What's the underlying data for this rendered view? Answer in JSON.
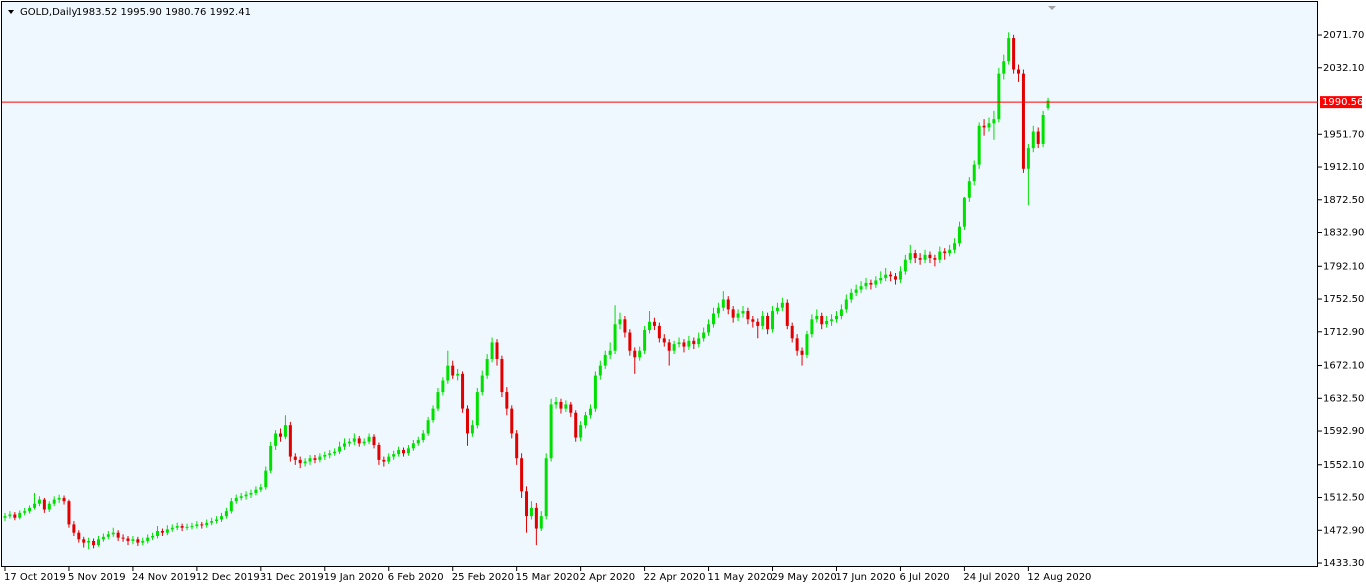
{
  "chart_data": {
    "type": "candlestick",
    "title": "GOLD,Daily",
    "subtitle": "1983.52 1995.90 1980.76 1992.41",
    "up_color": "#00e000",
    "down_color": "#e00000",
    "current_price": 1990.56,
    "current_price_color": "#ff0000",
    "grid": false,
    "ylim": [
      1428.5,
      2108.0
    ],
    "yticks": [
      {
        "value": 1433.3,
        "label": "1433.30"
      },
      {
        "value": 1472.9,
        "label": "1472.90"
      },
      {
        "value": 1512.5,
        "label": "1512.50"
      },
      {
        "value": 1552.1,
        "label": "1552.10"
      },
      {
        "value": 1592.9,
        "label": "1592.90"
      },
      {
        "value": 1632.5,
        "label": "1632.50"
      },
      {
        "value": 1672.1,
        "label": "1672.10"
      },
      {
        "value": 1712.9,
        "label": "1712.90"
      },
      {
        "value": 1752.5,
        "label": "1752.50"
      },
      {
        "value": 1792.1,
        "label": "1792.10"
      },
      {
        "value": 1832.9,
        "label": "1832.90"
      },
      {
        "value": 1872.5,
        "label": "1872.50"
      },
      {
        "value": 1912.1,
        "label": "1912.10"
      },
      {
        "value": 1951.7,
        "label": "1951.70"
      },
      {
        "value": 2032.1,
        "label": "2032.10"
      },
      {
        "value": 2071.7,
        "label": "2071.70"
      }
    ],
    "categories": [
      "17 Oct 2019",
      null,
      null,
      null,
      null,
      null,
      null,
      null,
      null,
      null,
      null,
      null,
      null,
      "5 Nov 2019",
      null,
      null,
      null,
      null,
      null,
      null,
      null,
      null,
      null,
      null,
      null,
      null,
      "24 Nov 2019",
      null,
      null,
      null,
      null,
      null,
      null,
      null,
      null,
      null,
      null,
      null,
      null,
      "12 Dec 2019",
      null,
      null,
      null,
      null,
      null,
      null,
      null,
      null,
      null,
      null,
      null,
      null,
      "31 Dec 2019",
      null,
      null,
      null,
      null,
      null,
      null,
      null,
      null,
      null,
      null,
      null,
      null,
      "19 Jan 2020",
      null,
      null,
      null,
      null,
      null,
      null,
      null,
      null,
      null,
      null,
      null,
      null,
      "6 Feb 2020",
      null,
      null,
      null,
      null,
      null,
      null,
      null,
      null,
      null,
      null,
      null,
      null,
      "25 Feb 2020",
      null,
      null,
      null,
      null,
      null,
      null,
      null,
      null,
      null,
      null,
      null,
      null,
      "15 Mar 2020",
      null,
      null,
      null,
      null,
      null,
      null,
      null,
      null,
      null,
      null,
      null,
      null,
      "2 Apr 2020",
      null,
      null,
      null,
      null,
      null,
      null,
      null,
      null,
      null,
      null,
      null,
      null,
      "22 Apr 2020",
      null,
      null,
      null,
      null,
      null,
      null,
      null,
      null,
      null,
      null,
      null,
      null,
      "11 May 2020",
      null,
      null,
      null,
      null,
      null,
      null,
      null,
      null,
      null,
      null,
      null,
      null,
      "29 May 2020",
      null,
      null,
      null,
      null,
      null,
      null,
      null,
      null,
      null,
      null,
      null,
      null,
      "17 Jun 2020",
      null,
      null,
      null,
      null,
      null,
      null,
      null,
      null,
      null,
      null,
      null,
      null,
      "6 Jul 2020",
      null,
      null,
      null,
      null,
      null,
      null,
      null,
      null,
      null,
      null,
      null,
      null,
      "24 Jul 2020",
      null,
      null,
      null,
      null,
      null,
      null,
      null,
      null,
      null,
      null,
      null,
      null,
      "12 Aug 2020",
      null,
      null,
      null,
      null
    ],
    "ohlc": [
      [
        1488,
        1494,
        1484,
        1490
      ],
      [
        1490,
        1496,
        1487,
        1492
      ],
      [
        1492,
        1495,
        1485,
        1488
      ],
      [
        1488,
        1497,
        1486,
        1494
      ],
      [
        1494,
        1500,
        1491,
        1496
      ],
      [
        1496,
        1503,
        1493,
        1500
      ],
      [
        1500,
        1518,
        1498,
        1505
      ],
      [
        1505,
        1514,
        1502,
        1510
      ],
      [
        1510,
        1512,
        1494,
        1498
      ],
      [
        1498,
        1508,
        1495,
        1505
      ],
      [
        1505,
        1514,
        1502,
        1510
      ],
      [
        1510,
        1516,
        1506,
        1512
      ],
      [
        1512,
        1515,
        1504,
        1508
      ],
      [
        1508,
        1510,
        1476,
        1480
      ],
      [
        1480,
        1484,
        1466,
        1470
      ],
      [
        1470,
        1473,
        1458,
        1462
      ],
      [
        1462,
        1465,
        1452,
        1458
      ],
      [
        1458,
        1464,
        1450,
        1460
      ],
      [
        1460,
        1463,
        1451,
        1455
      ],
      [
        1455,
        1466,
        1453,
        1462
      ],
      [
        1462,
        1469,
        1459,
        1465
      ],
      [
        1465,
        1472,
        1462,
        1468
      ],
      [
        1468,
        1476,
        1465,
        1470
      ],
      [
        1470,
        1473,
        1460,
        1464
      ],
      [
        1464,
        1468,
        1459,
        1463
      ],
      [
        1463,
        1466,
        1455,
        1460
      ],
      [
        1460,
        1466,
        1456,
        1462
      ],
      [
        1462,
        1465,
        1454,
        1458
      ],
      [
        1458,
        1464,
        1455,
        1460
      ],
      [
        1460,
        1468,
        1457,
        1464
      ],
      [
        1464,
        1470,
        1461,
        1466
      ],
      [
        1466,
        1478,
        1463,
        1472
      ],
      [
        1472,
        1475,
        1466,
        1470
      ],
      [
        1470,
        1479,
        1467,
        1474
      ],
      [
        1474,
        1480,
        1471,
        1476
      ],
      [
        1476,
        1482,
        1473,
        1478
      ],
      [
        1478,
        1481,
        1472,
        1476
      ],
      [
        1476,
        1481,
        1473,
        1477
      ],
      [
        1477,
        1482,
        1474,
        1478
      ],
      [
        1478,
        1484,
        1475,
        1480
      ],
      [
        1480,
        1483,
        1475,
        1479
      ],
      [
        1479,
        1486,
        1476,
        1482
      ],
      [
        1482,
        1488,
        1479,
        1484
      ],
      [
        1484,
        1490,
        1481,
        1486
      ],
      [
        1486,
        1494,
        1483,
        1490
      ],
      [
        1490,
        1500,
        1487,
        1496
      ],
      [
        1496,
        1512,
        1493,
        1508
      ],
      [
        1508,
        1516,
        1505,
        1512
      ],
      [
        1512,
        1518,
        1509,
        1514
      ],
      [
        1514,
        1520,
        1510,
        1516
      ],
      [
        1516,
        1522,
        1512,
        1518
      ],
      [
        1518,
        1526,
        1515,
        1522
      ],
      [
        1522,
        1529,
        1519,
        1525
      ],
      [
        1525,
        1550,
        1522,
        1545
      ],
      [
        1545,
        1580,
        1542,
        1575
      ],
      [
        1575,
        1594,
        1570,
        1590
      ],
      [
        1590,
        1596,
        1580,
        1586
      ],
      [
        1586,
        1612,
        1583,
        1600
      ],
      [
        1600,
        1604,
        1556,
        1562
      ],
      [
        1562,
        1566,
        1552,
        1558
      ],
      [
        1558,
        1562,
        1548,
        1554
      ],
      [
        1554,
        1560,
        1550,
        1556
      ],
      [
        1556,
        1564,
        1552,
        1560
      ],
      [
        1560,
        1564,
        1554,
        1558
      ],
      [
        1558,
        1566,
        1555,
        1562
      ],
      [
        1562,
        1568,
        1558,
        1564
      ],
      [
        1564,
        1570,
        1560,
        1566
      ],
      [
        1566,
        1572,
        1563,
        1568
      ],
      [
        1568,
        1580,
        1565,
        1574
      ],
      [
        1574,
        1584,
        1570,
        1578
      ],
      [
        1578,
        1584,
        1574,
        1580
      ],
      [
        1580,
        1590,
        1576,
        1584
      ],
      [
        1584,
        1587,
        1574,
        1578
      ],
      [
        1578,
        1584,
        1575,
        1580
      ],
      [
        1580,
        1590,
        1577,
        1586
      ],
      [
        1586,
        1589,
        1572,
        1576
      ],
      [
        1576,
        1579,
        1552,
        1558
      ],
      [
        1558,
        1562,
        1550,
        1556
      ],
      [
        1556,
        1566,
        1553,
        1562
      ],
      [
        1562,
        1569,
        1558,
        1565
      ],
      [
        1565,
        1574,
        1562,
        1570
      ],
      [
        1570,
        1573,
        1562,
        1566
      ],
      [
        1566,
        1576,
        1563,
        1572
      ],
      [
        1572,
        1582,
        1569,
        1578
      ],
      [
        1578,
        1586,
        1575,
        1582
      ],
      [
        1582,
        1594,
        1579,
        1590
      ],
      [
        1590,
        1610,
        1587,
        1606
      ],
      [
        1606,
        1624,
        1603,
        1620
      ],
      [
        1620,
        1645,
        1617,
        1640
      ],
      [
        1640,
        1658,
        1636,
        1654
      ],
      [
        1654,
        1690,
        1650,
        1672
      ],
      [
        1672,
        1678,
        1656,
        1660
      ],
      [
        1660,
        1668,
        1654,
        1662
      ],
      [
        1662,
        1665,
        1615,
        1620
      ],
      [
        1620,
        1624,
        1575,
        1590
      ],
      [
        1590,
        1606,
        1586,
        1600
      ],
      [
        1600,
        1645,
        1596,
        1640
      ],
      [
        1640,
        1666,
        1636,
        1660
      ],
      [
        1660,
        1686,
        1656,
        1680
      ],
      [
        1680,
        1706,
        1676,
        1700
      ],
      [
        1700,
        1704,
        1672,
        1680
      ],
      [
        1680,
        1684,
        1634,
        1640
      ],
      [
        1640,
        1646,
        1612,
        1620
      ],
      [
        1620,
        1624,
        1584,
        1590
      ],
      [
        1590,
        1594,
        1552,
        1560
      ],
      [
        1560,
        1566,
        1512,
        1520
      ],
      [
        1520,
        1526,
        1470,
        1490
      ],
      [
        1490,
        1508,
        1486,
        1500
      ],
      [
        1500,
        1506,
        1455,
        1475
      ],
      [
        1475,
        1496,
        1472,
        1490
      ],
      [
        1490,
        1566,
        1486,
        1560
      ],
      [
        1560,
        1632,
        1556,
        1625
      ],
      [
        1625,
        1634,
        1620,
        1628
      ],
      [
        1628,
        1632,
        1614,
        1620
      ],
      [
        1620,
        1630,
        1616,
        1625
      ],
      [
        1625,
        1628,
        1610,
        1615
      ],
      [
        1615,
        1618,
        1580,
        1585
      ],
      [
        1585,
        1605,
        1581,
        1600
      ],
      [
        1600,
        1616,
        1596,
        1612
      ],
      [
        1612,
        1625,
        1608,
        1620
      ],
      [
        1620,
        1665,
        1616,
        1660
      ],
      [
        1660,
        1678,
        1655,
        1672
      ],
      [
        1672,
        1690,
        1668,
        1685
      ],
      [
        1685,
        1700,
        1680,
        1690
      ],
      [
        1690,
        1745,
        1686,
        1722
      ],
      [
        1722,
        1736,
        1716,
        1728
      ],
      [
        1728,
        1732,
        1706,
        1712
      ],
      [
        1712,
        1716,
        1684,
        1690
      ],
      [
        1690,
        1694,
        1662,
        1682
      ],
      [
        1682,
        1695,
        1678,
        1690
      ],
      [
        1690,
        1720,
        1686,
        1715
      ],
      [
        1715,
        1738,
        1711,
        1725
      ],
      [
        1725,
        1730,
        1715,
        1720
      ],
      [
        1720,
        1724,
        1700,
        1705
      ],
      [
        1705,
        1710,
        1695,
        1700
      ],
      [
        1700,
        1704,
        1672,
        1690
      ],
      [
        1690,
        1702,
        1686,
        1698
      ],
      [
        1698,
        1706,
        1694,
        1700
      ],
      [
        1700,
        1704,
        1688,
        1695
      ],
      [
        1695,
        1708,
        1691,
        1702
      ],
      [
        1702,
        1706,
        1692,
        1698
      ],
      [
        1698,
        1712,
        1694,
        1705
      ],
      [
        1705,
        1718,
        1701,
        1712
      ],
      [
        1712,
        1728,
        1708,
        1722
      ],
      [
        1722,
        1742,
        1718,
        1735
      ],
      [
        1735,
        1748,
        1730,
        1742
      ],
      [
        1742,
        1762,
        1738,
        1752
      ],
      [
        1752,
        1756,
        1734,
        1740
      ],
      [
        1740,
        1744,
        1724,
        1730
      ],
      [
        1730,
        1740,
        1726,
        1735
      ],
      [
        1735,
        1744,
        1730,
        1738
      ],
      [
        1738,
        1742,
        1722,
        1728
      ],
      [
        1728,
        1732,
        1718,
        1725
      ],
      [
        1725,
        1729,
        1705,
        1720
      ],
      [
        1720,
        1738,
        1716,
        1732
      ],
      [
        1732,
        1736,
        1710,
        1716
      ],
      [
        1716,
        1744,
        1712,
        1738
      ],
      [
        1738,
        1748,
        1734,
        1742
      ],
      [
        1742,
        1754,
        1738,
        1748
      ],
      [
        1748,
        1752,
        1716,
        1720
      ],
      [
        1720,
        1724,
        1700,
        1705
      ],
      [
        1705,
        1710,
        1684,
        1690
      ],
      [
        1690,
        1694,
        1672,
        1685
      ],
      [
        1685,
        1714,
        1681,
        1710
      ],
      [
        1710,
        1734,
        1706,
        1728
      ],
      [
        1728,
        1740,
        1724,
        1732
      ],
      [
        1732,
        1736,
        1716,
        1722
      ],
      [
        1722,
        1732,
        1718,
        1726
      ],
      [
        1726,
        1734,
        1720,
        1728
      ],
      [
        1728,
        1738,
        1724,
        1732
      ],
      [
        1732,
        1746,
        1728,
        1740
      ],
      [
        1740,
        1758,
        1736,
        1752
      ],
      [
        1752,
        1765,
        1748,
        1760
      ],
      [
        1760,
        1770,
        1756,
        1764
      ],
      [
        1764,
        1774,
        1760,
        1768
      ],
      [
        1768,
        1778,
        1764,
        1772
      ],
      [
        1772,
        1776,
        1764,
        1770
      ],
      [
        1770,
        1780,
        1766,
        1775
      ],
      [
        1775,
        1786,
        1771,
        1778
      ],
      [
        1778,
        1790,
        1774,
        1782
      ],
      [
        1782,
        1786,
        1774,
        1780
      ],
      [
        1780,
        1784,
        1770,
        1776
      ],
      [
        1776,
        1792,
        1772,
        1786
      ],
      [
        1786,
        1806,
        1782,
        1800
      ],
      [
        1800,
        1818,
        1796,
        1808
      ],
      [
        1808,
        1812,
        1796,
        1802
      ],
      [
        1802,
        1808,
        1794,
        1800
      ],
      [
        1800,
        1812,
        1796,
        1806
      ],
      [
        1806,
        1810,
        1796,
        1802
      ],
      [
        1802,
        1806,
        1792,
        1800
      ],
      [
        1800,
        1816,
        1796,
        1810
      ],
      [
        1810,
        1814,
        1800,
        1808
      ],
      [
        1808,
        1818,
        1804,
        1812
      ],
      [
        1812,
        1826,
        1808,
        1820
      ],
      [
        1820,
        1846,
        1816,
        1840
      ],
      [
        1840,
        1876,
        1836,
        1875
      ],
      [
        1875,
        1900,
        1870,
        1895
      ],
      [
        1895,
        1920,
        1890,
        1915
      ],
      [
        1915,
        1966,
        1910,
        1962
      ],
      [
        1962,
        1970,
        1950,
        1960
      ],
      [
        1960,
        1972,
        1955,
        1965
      ],
      [
        1965,
        1980,
        1945,
        1970
      ],
      [
        1970,
        2032,
        1966,
        2025
      ],
      [
        2025,
        2048,
        2018,
        2040
      ],
      [
        2040,
        2075,
        2036,
        2068
      ],
      [
        2068,
        2072,
        2025,
        2030
      ],
      [
        2030,
        2036,
        2015,
        2025
      ],
      [
        2025,
        2030,
        1905,
        1910
      ],
      [
        1910,
        1940,
        1866,
        1935
      ],
      [
        1935,
        1962,
        1930,
        1955
      ],
      [
        1955,
        1960,
        1935,
        1940
      ],
      [
        1940,
        1980,
        1936,
        1975
      ],
      [
        1983.52,
        1995.9,
        1980.76,
        1992.41
      ]
    ]
  }
}
